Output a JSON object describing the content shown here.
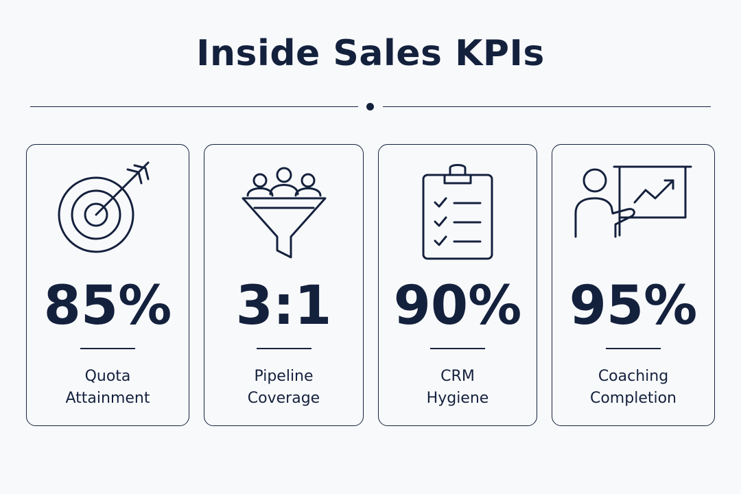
{
  "title": "Inside Sales KPIs",
  "cards": [
    {
      "value": "85%",
      "label_line1": "Quota",
      "label_line2": "Attainment",
      "icon": "target-icon"
    },
    {
      "value": "3:1",
      "label_line1": "Pipeline",
      "label_line2": "Coverage",
      "icon": "funnel-icon"
    },
    {
      "value": "90%",
      "label_line1": "CRM",
      "label_line2": "Hygiene",
      "icon": "clipboard-icon"
    },
    {
      "value": "95%",
      "label_line1": "Coaching",
      "label_line2": "Completion",
      "icon": "presentation-icon"
    }
  ],
  "colors": {
    "ink": "#14213d",
    "background": "#f8f9fb"
  }
}
